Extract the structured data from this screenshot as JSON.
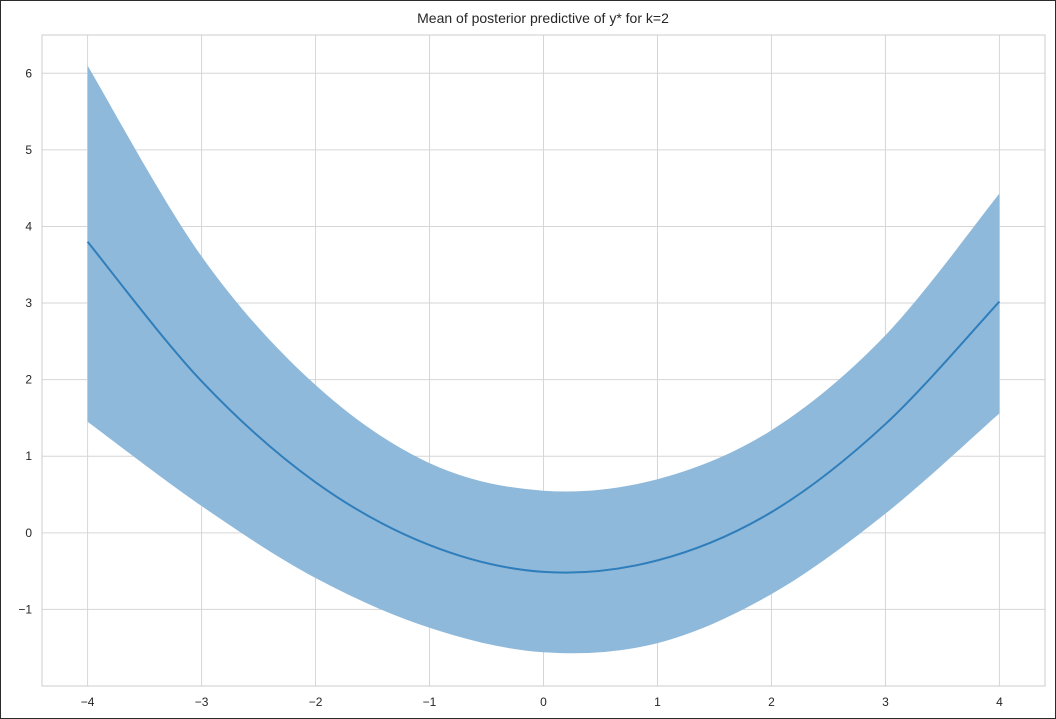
{
  "chart_data": {
    "type": "line",
    "title": "Mean of posterior predictive of y* for k=2",
    "xlabel": "",
    "ylabel": "",
    "xlim": [
      -4.4,
      4.4
    ],
    "ylim": [
      -2.0,
      6.5
    ],
    "xticks": [
      -4,
      -3,
      -2,
      -1,
      0,
      1,
      2,
      3,
      4
    ],
    "xtick_labels": [
      "−4",
      "−3",
      "−2",
      "−1",
      "0",
      "1",
      "2",
      "3",
      "4"
    ],
    "yticks": [
      -1,
      0,
      1,
      2,
      3,
      4,
      5,
      6
    ],
    "ytick_labels": [
      "−1",
      "0",
      "1",
      "2",
      "3",
      "4",
      "5",
      "6"
    ],
    "grid": true,
    "legend": "none",
    "colors": {
      "line": "#2f7ebc",
      "band": "#8fb9da",
      "grid": "#d6d6d6",
      "axes_edge": "#cccccc"
    },
    "series": [
      {
        "role": "mean",
        "x": [
          -4,
          -3,
          -2,
          -1,
          0,
          1,
          2,
          3,
          4
        ],
        "y": [
          3.8,
          1.98,
          0.66,
          -0.16,
          -0.51,
          -0.36,
          0.27,
          1.42,
          3.02
        ]
      },
      {
        "role": "band",
        "x": [
          -4,
          -3,
          -2,
          -1,
          0,
          1,
          2,
          3,
          4
        ],
        "lower": [
          1.45,
          0.35,
          -0.59,
          -1.24,
          -1.56,
          -1.44,
          -0.8,
          0.25,
          1.56
        ],
        "upper": [
          6.1,
          3.61,
          1.93,
          0.91,
          0.55,
          0.7,
          1.34,
          2.58,
          4.43
        ]
      }
    ]
  }
}
